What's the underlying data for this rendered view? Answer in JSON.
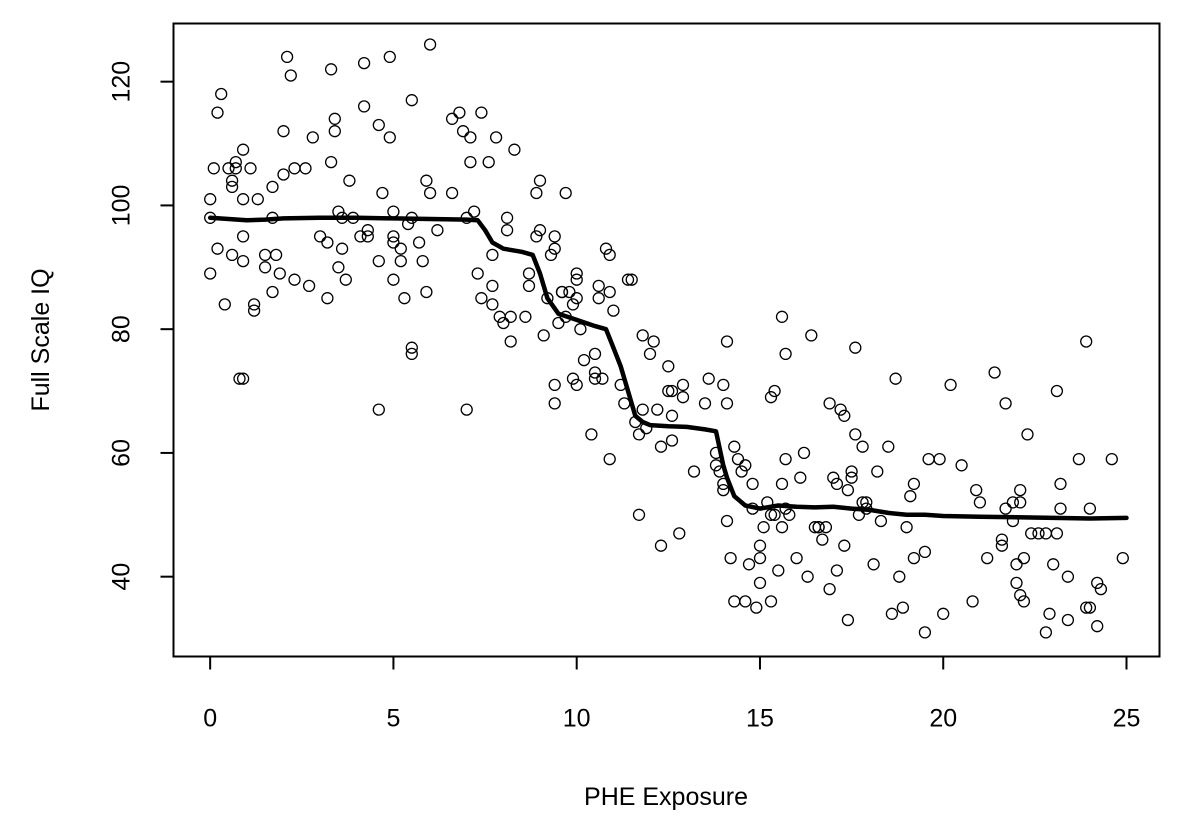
{
  "chart_data": {
    "type": "scatter",
    "xlabel": "PHE Exposure",
    "ylabel": "Full Scale IQ",
    "xlim": [
      -1,
      25.9
    ],
    "ylim": [
      27.1,
      129.4
    ],
    "xticks": [
      0,
      5,
      10,
      15,
      20,
      25
    ],
    "yticks": [
      40,
      60,
      80,
      100,
      120
    ],
    "grid": false,
    "points": [
      [
        0,
        101
      ],
      [
        0,
        98
      ],
      [
        0,
        89
      ],
      [
        0.1,
        106
      ],
      [
        0.2,
        115
      ],
      [
        0.2,
        93
      ],
      [
        0.3,
        118
      ],
      [
        0.4,
        84
      ],
      [
        0.5,
        106
      ],
      [
        0.6,
        104
      ],
      [
        0.6,
        103
      ],
      [
        0.6,
        92
      ],
      [
        0.7,
        107
      ],
      [
        0.7,
        106
      ],
      [
        0.8,
        72
      ],
      [
        0.9,
        72
      ],
      [
        0.9,
        109
      ],
      [
        0.9,
        101
      ],
      [
        0.9,
        95
      ],
      [
        0.9,
        91
      ],
      [
        1.1,
        106
      ],
      [
        1.2,
        84
      ],
      [
        1.2,
        83
      ],
      [
        1.3,
        101
      ],
      [
        1.5,
        90
      ],
      [
        1.5,
        92
      ],
      [
        1.7,
        103
      ],
      [
        1.7,
        98
      ],
      [
        1.7,
        86
      ],
      [
        1.8,
        92
      ],
      [
        1.9,
        89
      ],
      [
        2,
        105
      ],
      [
        2,
        112
      ],
      [
        2.1,
        124
      ],
      [
        2.2,
        121
      ],
      [
        2.3,
        106
      ],
      [
        2.3,
        88
      ],
      [
        2.6,
        106
      ],
      [
        2.7,
        87
      ],
      [
        2.8,
        111
      ],
      [
        3,
        95
      ],
      [
        3.2,
        94
      ],
      [
        3.2,
        85
      ],
      [
        3.3,
        122
      ],
      [
        3.3,
        107
      ],
      [
        3.4,
        112
      ],
      [
        3.4,
        114
      ],
      [
        3.5,
        99
      ],
      [
        3.5,
        90
      ],
      [
        3.6,
        93
      ],
      [
        3.6,
        98
      ],
      [
        3.7,
        88
      ],
      [
        3.8,
        104
      ],
      [
        3.9,
        98
      ],
      [
        4.1,
        95
      ],
      [
        4.2,
        116
      ],
      [
        4.2,
        123
      ],
      [
        4.3,
        95
      ],
      [
        4.3,
        96
      ],
      [
        4.6,
        67
      ],
      [
        4.6,
        113
      ],
      [
        4.6,
        91
      ],
      [
        4.7,
        102
      ],
      [
        4.9,
        124
      ],
      [
        4.9,
        111
      ],
      [
        5,
        99
      ],
      [
        5,
        95
      ],
      [
        5,
        94
      ],
      [
        5,
        88
      ],
      [
        5.2,
        91
      ],
      [
        5.2,
        93
      ],
      [
        5.3,
        85
      ],
      [
        5.4,
        97
      ],
      [
        5.5,
        117
      ],
      [
        5.5,
        98
      ],
      [
        5.5,
        77
      ],
      [
        5.5,
        76
      ],
      [
        5.7,
        94
      ],
      [
        5.8,
        91
      ],
      [
        5.9,
        104
      ],
      [
        5.9,
        86
      ],
      [
        6,
        126
      ],
      [
        6,
        102
      ],
      [
        6.2,
        96
      ],
      [
        6.6,
        102
      ],
      [
        6.6,
        114
      ],
      [
        6.8,
        115
      ],
      [
        6.9,
        112
      ],
      [
        7,
        67
      ],
      [
        7,
        98
      ],
      [
        7.1,
        111
      ],
      [
        7.1,
        107
      ],
      [
        7.2,
        99
      ],
      [
        7.3,
        89
      ],
      [
        7.4,
        115
      ],
      [
        7.4,
        85
      ],
      [
        7.6,
        107
      ],
      [
        7.7,
        87
      ],
      [
        7.7,
        84
      ],
      [
        7.7,
        92
      ],
      [
        7.8,
        111
      ],
      [
        7.9,
        82
      ],
      [
        8,
        81
      ],
      [
        8.1,
        98
      ],
      [
        8.1,
        96
      ],
      [
        8.2,
        78
      ],
      [
        8.2,
        82
      ],
      [
        8.3,
        109
      ],
      [
        8.6,
        82
      ],
      [
        8.7,
        87
      ],
      [
        8.7,
        89
      ],
      [
        8.9,
        102
      ],
      [
        8.9,
        95
      ],
      [
        9,
        96
      ],
      [
        9,
        104
      ],
      [
        9.1,
        79
      ],
      [
        9.2,
        85
      ],
      [
        9.3,
        92
      ],
      [
        9.4,
        95
      ],
      [
        9.4,
        93
      ],
      [
        9.4,
        71
      ],
      [
        9.4,
        68
      ],
      [
        9.5,
        81
      ],
      [
        9.6,
        86
      ],
      [
        9.6,
        86
      ],
      [
        9.7,
        82
      ],
      [
        9.7,
        102
      ],
      [
        9.8,
        86
      ],
      [
        9.9,
        72
      ],
      [
        9.9,
        84
      ],
      [
        10,
        71
      ],
      [
        10,
        85
      ],
      [
        10,
        88
      ],
      [
        10,
        89
      ],
      [
        10.1,
        80
      ],
      [
        10.2,
        75
      ],
      [
        10.4,
        63
      ],
      [
        10.5,
        76
      ],
      [
        10.5,
        73
      ],
      [
        10.5,
        72
      ],
      [
        10.6,
        85
      ],
      [
        10.6,
        87
      ],
      [
        10.7,
        72
      ],
      [
        10.8,
        93
      ],
      [
        10.9,
        59
      ],
      [
        10.9,
        92
      ],
      [
        10.9,
        86
      ],
      [
        11,
        83
      ],
      [
        11.2,
        71
      ],
      [
        11.3,
        68
      ],
      [
        11.4,
        88
      ],
      [
        11.5,
        88
      ],
      [
        11.6,
        65
      ],
      [
        11.7,
        63
      ],
      [
        11.7,
        50
      ],
      [
        11.8,
        79
      ],
      [
        11.8,
        67
      ],
      [
        11.9,
        64
      ],
      [
        12,
        76
      ],
      [
        12.1,
        78
      ],
      [
        12.2,
        67
      ],
      [
        12.3,
        61
      ],
      [
        12.3,
        45
      ],
      [
        12.5,
        74
      ],
      [
        12.5,
        70
      ],
      [
        12.6,
        62
      ],
      [
        12.6,
        70
      ],
      [
        12.6,
        66
      ],
      [
        12.8,
        47
      ],
      [
        12.9,
        71
      ],
      [
        12.9,
        69
      ],
      [
        13.2,
        57
      ],
      [
        13.5,
        68
      ],
      [
        13.6,
        72
      ],
      [
        13.8,
        58
      ],
      [
        13.8,
        60
      ],
      [
        13.9,
        57
      ],
      [
        14,
        55
      ],
      [
        14,
        54
      ],
      [
        14,
        71
      ],
      [
        14.1,
        78
      ],
      [
        14.1,
        68
      ],
      [
        14.1,
        49
      ],
      [
        14.2,
        43
      ],
      [
        14.3,
        36
      ],
      [
        14.3,
        61
      ],
      [
        14.4,
        59
      ],
      [
        14.5,
        57
      ],
      [
        14.6,
        36
      ],
      [
        14.6,
        58
      ],
      [
        14.7,
        42
      ],
      [
        14.8,
        55
      ],
      [
        14.8,
        51
      ],
      [
        14.9,
        35
      ],
      [
        15,
        39
      ],
      [
        15,
        43
      ],
      [
        15,
        45
      ],
      [
        15.1,
        48
      ],
      [
        15.2,
        52
      ],
      [
        15.3,
        50
      ],
      [
        15.3,
        36
      ],
      [
        15.3,
        69
      ],
      [
        15.4,
        70
      ],
      [
        15.4,
        50
      ],
      [
        15.5,
        41
      ],
      [
        15.6,
        82
      ],
      [
        15.6,
        48
      ],
      [
        15.6,
        55
      ],
      [
        15.7,
        59
      ],
      [
        15.7,
        76
      ],
      [
        15.7,
        51
      ],
      [
        15.8,
        50
      ],
      [
        16,
        43
      ],
      [
        16.1,
        56
      ],
      [
        16.2,
        60
      ],
      [
        16.3,
        40
      ],
      [
        16.4,
        79
      ],
      [
        16.5,
        48
      ],
      [
        16.6,
        48
      ],
      [
        16.6,
        48
      ],
      [
        16.7,
        46
      ],
      [
        16.8,
        48
      ],
      [
        16.9,
        38
      ],
      [
        16.9,
        68
      ],
      [
        17,
        56
      ],
      [
        17.1,
        41
      ],
      [
        17.1,
        55
      ],
      [
        17.2,
        67
      ],
      [
        17.3,
        66
      ],
      [
        17.3,
        45
      ],
      [
        17.4,
        54
      ],
      [
        17.4,
        33
      ],
      [
        17.5,
        56
      ],
      [
        17.5,
        57
      ],
      [
        17.6,
        77
      ],
      [
        17.6,
        63
      ],
      [
        17.7,
        50
      ],
      [
        17.8,
        61
      ],
      [
        17.8,
        52
      ],
      [
        17.9,
        51
      ],
      [
        17.9,
        52
      ],
      [
        18.1,
        42
      ],
      [
        18.2,
        57
      ],
      [
        18.3,
        49
      ],
      [
        18.5,
        61
      ],
      [
        18.6,
        34
      ],
      [
        18.7,
        72
      ],
      [
        18.8,
        40
      ],
      [
        18.9,
        35
      ],
      [
        19,
        48
      ],
      [
        19.1,
        53
      ],
      [
        19.2,
        55
      ],
      [
        19.2,
        43
      ],
      [
        19.5,
        31
      ],
      [
        19.5,
        44
      ],
      [
        19.6,
        59
      ],
      [
        19.9,
        59
      ],
      [
        20,
        34
      ],
      [
        20.2,
        71
      ],
      [
        20.5,
        58
      ],
      [
        20.8,
        36
      ],
      [
        20.9,
        54
      ],
      [
        21,
        52
      ],
      [
        21.2,
        43
      ],
      [
        21.4,
        73
      ],
      [
        21.6,
        46
      ],
      [
        21.6,
        45
      ],
      [
        21.7,
        68
      ],
      [
        21.7,
        51
      ],
      [
        21.9,
        52
      ],
      [
        21.9,
        49
      ],
      [
        22,
        39
      ],
      [
        22,
        42
      ],
      [
        22.1,
        54
      ],
      [
        22.1,
        52
      ],
      [
        22.1,
        37
      ],
      [
        22.2,
        36
      ],
      [
        22.2,
        43
      ],
      [
        22.3,
        63
      ],
      [
        22.4,
        47
      ],
      [
        22.6,
        47
      ],
      [
        22.8,
        47
      ],
      [
        22.8,
        31
      ],
      [
        22.9,
        34
      ],
      [
        23,
        42
      ],
      [
        23.1,
        47
      ],
      [
        23.1,
        70
      ],
      [
        23.2,
        51
      ],
      [
        23.2,
        55
      ],
      [
        23.4,
        40
      ],
      [
        23.4,
        33
      ],
      [
        23.7,
        59
      ],
      [
        23.9,
        78
      ],
      [
        23.9,
        35
      ],
      [
        24,
        51
      ],
      [
        24,
        35
      ],
      [
        24.2,
        39
      ],
      [
        24.2,
        32
      ],
      [
        24.3,
        38
      ],
      [
        24.6,
        59
      ],
      [
        24.9,
        43
      ]
    ],
    "fit_line": [
      [
        0,
        98
      ],
      [
        0.5,
        97.8
      ],
      [
        1,
        97.6
      ],
      [
        1.5,
        97.7
      ],
      [
        2,
        97.9
      ],
      [
        3,
        98
      ],
      [
        4,
        98
      ],
      [
        5,
        97.9
      ],
      [
        6,
        97.8
      ],
      [
        7,
        97.7
      ],
      [
        7.3,
        97.6
      ],
      [
        7.5,
        96
      ],
      [
        7.7,
        94
      ],
      [
        8,
        93
      ],
      [
        8.5,
        92.5
      ],
      [
        8.8,
        92
      ],
      [
        9,
        89
      ],
      [
        9.2,
        85
      ],
      [
        9.5,
        82.5
      ],
      [
        10,
        81.5
      ],
      [
        10.5,
        80.5
      ],
      [
        10.8,
        80
      ],
      [
        11,
        77
      ],
      [
        11.2,
        74
      ],
      [
        11.4,
        70
      ],
      [
        11.6,
        66
      ],
      [
        11.8,
        65
      ],
      [
        12,
        64.5
      ],
      [
        12.5,
        64.3
      ],
      [
        13,
        64.2
      ],
      [
        13.5,
        63.8
      ],
      [
        13.8,
        63.5
      ],
      [
        14,
        58
      ],
      [
        14.1,
        56
      ],
      [
        14.3,
        53
      ],
      [
        14.6,
        51.5
      ],
      [
        15,
        51
      ],
      [
        15.5,
        51.5
      ],
      [
        16,
        51.3
      ],
      [
        16.5,
        51.2
      ],
      [
        17,
        51.3
      ],
      [
        17.5,
        51
      ],
      [
        18,
        50.8
      ],
      [
        18.5,
        50.3
      ],
      [
        19,
        50
      ],
      [
        19.5,
        50
      ],
      [
        20,
        49.8
      ],
      [
        21,
        49.7
      ],
      [
        22,
        49.6
      ],
      [
        23,
        49.5
      ],
      [
        24,
        49.4
      ],
      [
        25,
        49.5
      ]
    ]
  }
}
